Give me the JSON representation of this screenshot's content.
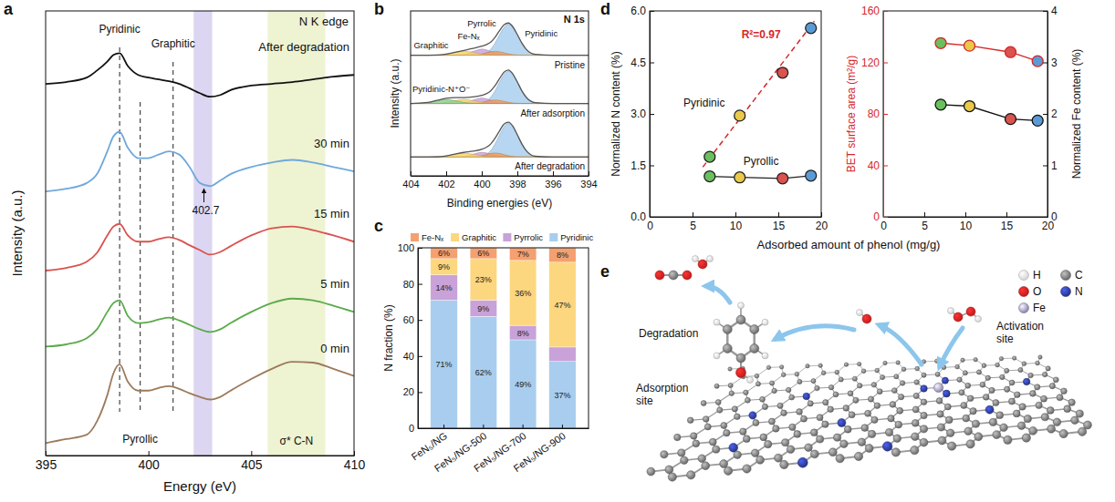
{
  "chart_data": [
    {
      "panel": "a",
      "type": "line",
      "x_label": "Energy (eV)",
      "y_label": "Intensity (a.u.)",
      "xlim": [
        395,
        410
      ],
      "xticks": [
        395,
        400,
        405,
        410
      ],
      "ylim": [
        0,
        10
      ],
      "tick_labels": "x",
      "x": [
        395,
        396,
        397,
        397.5,
        398,
        398.3,
        398.6,
        399,
        399.5,
        400,
        400.5,
        401,
        401.5,
        402,
        402.5,
        403,
        403.5,
        404,
        405,
        406,
        407,
        408,
        409,
        410
      ],
      "series": [
        {
          "name": "0 min",
          "color": "#9c7a5b",
          "values": [
            0.28,
            0.37,
            0.47,
            0.77,
            1.36,
            1.85,
            2.05,
            1.66,
            1.46,
            1.46,
            1.52,
            1.56,
            1.5,
            1.4,
            1.32,
            1.26,
            1.32,
            1.46,
            1.72,
            1.95,
            2.11,
            2.09,
            1.95,
            1.79
          ]
        },
        {
          "name": "5 min",
          "color": "#5aab4a",
          "values": [
            2.45,
            2.5,
            2.64,
            2.84,
            3.23,
            3.43,
            3.49,
            3.14,
            2.98,
            3.0,
            3.06,
            3.1,
            3.04,
            2.94,
            2.84,
            2.78,
            2.84,
            2.98,
            3.23,
            3.43,
            3.53,
            3.49,
            3.37,
            3.23
          ]
        },
        {
          "name": "15 min",
          "color": "#d9534f",
          "values": [
            4.16,
            4.22,
            4.36,
            4.56,
            4.95,
            5.15,
            5.21,
            4.95,
            4.81,
            4.81,
            4.87,
            4.91,
            4.85,
            4.73,
            4.62,
            4.52,
            4.58,
            4.71,
            4.95,
            5.11,
            5.15,
            5.07,
            4.95,
            4.81
          ]
        },
        {
          "name": "30 min",
          "color": "#6fa8dc",
          "values": [
            5.94,
            6.0,
            6.13,
            6.33,
            6.84,
            7.18,
            7.28,
            6.92,
            6.69,
            6.69,
            6.77,
            6.84,
            6.77,
            6.49,
            6.13,
            6.06,
            6.19,
            6.33,
            6.49,
            6.59,
            6.65,
            6.59,
            6.49,
            6.39
          ]
        },
        {
          "name": "After degradation",
          "color": "#111111",
          "values": [
            8.36,
            8.4,
            8.5,
            8.66,
            8.86,
            9.01,
            9.05,
            8.76,
            8.56,
            8.5,
            8.46,
            8.42,
            8.36,
            8.26,
            8.15,
            8.07,
            8.11,
            8.22,
            8.32,
            8.36,
            8.4,
            8.46,
            8.52,
            8.56
          ]
        }
      ],
      "vlines": [
        {
          "x": 398.6,
          "label": "Pyridinic"
        },
        {
          "x": 399.6,
          "label": "Pyrollic"
        },
        {
          "x": 401.2,
          "label": "Graphitic"
        }
      ],
      "bands": [
        {
          "x": [
            402.2,
            403.1
          ],
          "color": "#dcd6f2"
        },
        {
          "x": [
            405.8,
            408.6
          ],
          "color": "#eef3d2",
          "label": "σ* C-N"
        }
      ],
      "annotations": [
        {
          "text": "N K edge"
        },
        {
          "text": "402.7",
          "x": 402.7
        }
      ]
    },
    {
      "panel": "b",
      "type": "area",
      "title": "N 1s",
      "x_label": "Binding energies (eV)",
      "y_label": "Intensity (a.u.)",
      "xlim": [
        404,
        394
      ],
      "xticks": [
        404,
        402,
        400,
        398,
        396,
        394
      ],
      "ylim": [
        0,
        12.3
      ],
      "tick_labels": "x",
      "x": [
        404,
        403,
        402.5,
        402,
        401.5,
        401,
        400.5,
        400,
        399.75,
        399.5,
        399.25,
        399,
        398.75,
        398.5,
        398.25,
        398,
        397.75,
        397.5,
        397,
        396,
        395,
        394
      ],
      "spectra": [
        {
          "name": "Pristine",
          "color": "#555555",
          "baseline": 9,
          "values": [
            9,
            9,
            9.01,
            9.08,
            9.22,
            9.36,
            9.5,
            9.67,
            9.78,
            9.97,
            10.34,
            10.83,
            11.26,
            11.4,
            11.11,
            10.53,
            9.91,
            9.44,
            9.06,
            9,
            9,
            9
          ],
          "components": [
            {
              "name": "Graphitic",
              "color": "#f6d36b",
              "values": [
                9,
                9,
                9.01,
                9.08,
                9.21,
                9.3,
                9.21,
                9.08,
                9.03,
                9.01,
                9,
                9,
                9,
                9,
                9,
                9,
                9,
                9,
                9,
                9,
                9,
                9
              ]
            },
            {
              "name": "Fe-Nₓ",
              "color": "#f29b5e",
              "values": [
                9,
                9,
                9,
                9,
                9,
                9,
                9.01,
                9.09,
                9.17,
                9.25,
                9.28,
                9.25,
                9.17,
                9.09,
                9.04,
                9.01,
                9,
                9,
                9,
                9,
                9,
                9
              ]
            },
            {
              "name": "Pyrrolic",
              "color": "#c9a0dc",
              "values": [
                9,
                9,
                9,
                9,
                9.01,
                9.06,
                9.27,
                9.45,
                9.4,
                9.27,
                9.15,
                9.06,
                9.02,
                9.01,
                9,
                9,
                9,
                9,
                9,
                9,
                9,
                9
              ]
            },
            {
              "name": "Pyridinic",
              "color": "#a7cdee",
              "values": [
                9,
                9,
                9,
                9,
                9,
                9,
                9,
                9.06,
                9.18,
                9.44,
                9.91,
                10.52,
                11.07,
                11.3,
                11.07,
                10.52,
                9.91,
                9.44,
                9.06,
                9,
                9,
                9
              ]
            }
          ]
        },
        {
          "name": "After adsorption",
          "color": "#555555",
          "baseline": 5.4,
          "values": [
            5.4,
            5.48,
            5.63,
            5.78,
            5.83,
            5.83,
            5.88,
            6.01,
            6.12,
            6.34,
            6.73,
            7.26,
            7.73,
            7.89,
            7.59,
            7.0,
            6.35,
            5.86,
            5.46,
            5.4,
            5.4,
            5.4
          ],
          "components": [
            {
              "name": "Pyridinic-N⁺O⁻",
              "color": "#8ccf8c",
              "values": [
                5.4,
                5.48,
                5.61,
                5.7,
                5.61,
                5.48,
                5.41,
                5.4,
                5.4,
                5.4,
                5.4,
                5.4,
                5.4,
                5.4,
                5.4,
                5.4,
                5.4,
                5.4,
                5.4,
                5.4,
                5.4,
                5.4
              ]
            },
            {
              "color": "#f6d36b",
              "values": [
                5.4,
                5.4,
                5.41,
                5.48,
                5.61,
                5.7,
                5.61,
                5.48,
                5.43,
                5.41,
                5.4,
                5.4,
                5.4,
                5.4,
                5.4,
                5.4,
                5.4,
                5.4,
                5.4,
                5.4,
                5.4,
                5.4
              ]
            },
            {
              "color": "#f29b5e",
              "values": [
                5.4,
                5.4,
                5.4,
                5.4,
                5.4,
                5.4,
                5.41,
                5.48,
                5.55,
                5.62,
                5.65,
                5.62,
                5.55,
                5.48,
                5.43,
                5.41,
                5.4,
                5.4,
                5.4,
                5.4,
                5.4,
                5.4
              ]
            },
            {
              "color": "#c9a0dc",
              "values": [
                5.4,
                5.4,
                5.4,
                5.4,
                5.4,
                5.45,
                5.64,
                5.8,
                5.75,
                5.64,
                5.53,
                5.45,
                5.42,
                5.4,
                5.4,
                5.4,
                5.4,
                5.4,
                5.4,
                5.4,
                5.4,
                5.4
              ]
            },
            {
              "color": "#a7cdee",
              "values": [
                5.4,
                5.4,
                5.4,
                5.4,
                5.4,
                5.4,
                5.4,
                5.46,
                5.58,
                5.86,
                6.35,
                6.99,
                7.56,
                7.8,
                7.56,
                6.99,
                6.35,
                5.86,
                5.46,
                5.4,
                5.4,
                5.4
              ]
            }
          ]
        },
        {
          "name": "After degradation",
          "color": "#555555",
          "baseline": 1.4,
          "values": [
            1.4,
            1.4,
            1.41,
            1.48,
            1.62,
            1.75,
            1.84,
            1.98,
            2.12,
            2.37,
            2.81,
            3.36,
            3.86,
            4.0,
            3.7,
            3.06,
            2.39,
            1.88,
            1.46,
            1.4,
            1.4,
            1.4
          ],
          "components": [
            {
              "color": "#f6d36b",
              "values": [
                1.4,
                1.4,
                1.41,
                1.48,
                1.61,
                1.7,
                1.61,
                1.48,
                1.43,
                1.41,
                1.4,
                1.4,
                1.4,
                1.4,
                1.4,
                1.4,
                1.4,
                1.4,
                1.4,
                1.4,
                1.4,
                1.4
              ]
            },
            {
              "color": "#f29b5e",
              "values": [
                1.4,
                1.4,
                1.4,
                1.4,
                1.4,
                1.4,
                1.41,
                1.5,
                1.58,
                1.67,
                1.7,
                1.67,
                1.58,
                1.5,
                1.44,
                1.41,
                1.4,
                1.4,
                1.4,
                1.4,
                1.4,
                1.4
              ]
            },
            {
              "color": "#c9a0dc",
              "values": [
                1.4,
                1.4,
                1.4,
                1.4,
                1.4,
                1.45,
                1.61,
                1.75,
                1.71,
                1.61,
                1.51,
                1.45,
                1.42,
                1.4,
                1.4,
                1.4,
                1.4,
                1.4,
                1.4,
                1.4,
                1.4,
                1.4
              ]
            },
            {
              "color": "#a7cdee",
              "values": [
                1.4,
                1.4,
                1.4,
                1.4,
                1.4,
                1.4,
                1.4,
                1.46,
                1.59,
                1.88,
                2.39,
                3.05,
                3.66,
                3.9,
                3.66,
                3.05,
                2.39,
                1.88,
                1.46,
                1.4,
                1.4,
                1.4
              ]
            }
          ]
        }
      ]
    },
    {
      "panel": "c",
      "type": "bar",
      "stacked": true,
      "data_labels": true,
      "legend": "top",
      "y_label": "N fraction (%)",
      "ylim": [
        0,
        100
      ],
      "yticks": [
        0,
        20,
        40,
        60,
        80,
        100
      ],
      "categories": [
        "FeN₅/NG",
        "FeN₅/NG-500",
        "FeN₅/NG-700",
        "FeN₅/NG-900"
      ],
      "series": [
        {
          "name": "Fe-Nₓ",
          "color": "#f4a070",
          "values": [
            6,
            6,
            7,
            8
          ],
          "value_labels": [
            "6%",
            "6%",
            "7%",
            "8%"
          ]
        },
        {
          "name": "Graphitic",
          "color": "#fcd77f",
          "values": [
            9,
            23,
            36,
            47
          ],
          "value_labels": [
            "9%",
            "23%",
            "36%",
            "47%"
          ]
        },
        {
          "name": "Pyrrolic",
          "color": "#c8a2d8",
          "values": [
            14,
            9,
            8,
            8
          ],
          "value_labels": [
            "14%",
            "9%",
            "8%",
            null
          ]
        },
        {
          "name": "Pyridinic",
          "color": "#a8cdee",
          "values": [
            71,
            62,
            49,
            37
          ],
          "value_labels": [
            "71%",
            "62%",
            "49%",
            "37%"
          ]
        }
      ]
    },
    {
      "panel": "d",
      "type": "scatter",
      "x_label": "Adsorbed amount of phenol (mg/g)",
      "y_label": "Normalized N content (%)",
      "xlim": [
        0,
        20
      ],
      "xticks": [
        0,
        5,
        10,
        15,
        20
      ],
      "ylim": [
        0,
        6
      ],
      "yticks": [
        {
          "value": 0,
          "label": "0.0"
        },
        1.5,
        {
          "value": 3,
          "label": "3.0"
        },
        4.5,
        {
          "value": 6,
          "label": "6.0"
        }
      ],
      "x": [
        7,
        10.5,
        15.5,
        18.8
      ],
      "colors": [
        "#6abf5e",
        "#e9c94a",
        "#d9534f",
        "#5b9bd5"
      ],
      "series": [
        {
          "name": "Pyridinic",
          "color": "#222222",
          "line_style": "none",
          "values": [
            1.75,
            2.95,
            4.2,
            5.5
          ]
        },
        {
          "name": "Pyrollic",
          "color": "#222222",
          "line_style": "solid",
          "values": [
            1.18,
            1.15,
            1.12,
            1.2
          ]
        }
      ],
      "fit": {
        "label": "R²=0.97",
        "color": "#d62728",
        "line_style": "dashed",
        "x": [
          6.2,
          19.2
        ],
        "values": [
          1.45,
          5.7
        ]
      }
    },
    {
      "type": "line",
      "y_label": "BET surface area (m²/g)",
      "y2_label": "Normalized Fe content (%)",
      "xlim": [
        0,
        20
      ],
      "xticks": [
        0,
        5,
        10,
        15,
        20
      ],
      "ylim": [
        0,
        160
      ],
      "yticks": [
        0,
        40,
        80,
        120,
        160
      ],
      "y2lim": [
        0,
        4
      ],
      "y2ticks": [
        0,
        1,
        2,
        3,
        4
      ],
      "x": [
        7,
        10.5,
        15.5,
        18.8
      ],
      "colors": [
        "#6abf5e",
        "#e9c94a",
        "#d9534f",
        "#5b9bd5"
      ],
      "series": [
        {
          "color": "#d62728",
          "values": [
            135,
            133,
            128,
            121
          ]
        },
        {
          "color": "#111111",
          "axis": "y2",
          "values": [
            2.18,
            2.15,
            1.9,
            1.87
          ]
        }
      ]
    }
  ],
  "diagram": {
    "panel": "e",
    "labels": [
      "Degradation",
      "Activation site",
      "Adsorption site"
    ],
    "legend": [
      {
        "label": "H",
        "color": "#f4f4f4"
      },
      {
        "label": "C",
        "color": "#7a7a7a"
      },
      {
        "label": "O",
        "color": "#e02020"
      },
      {
        "label": "N",
        "color": "#2e3d9a"
      },
      {
        "label": "Fe",
        "color": "#a09ac8"
      }
    ]
  }
}
